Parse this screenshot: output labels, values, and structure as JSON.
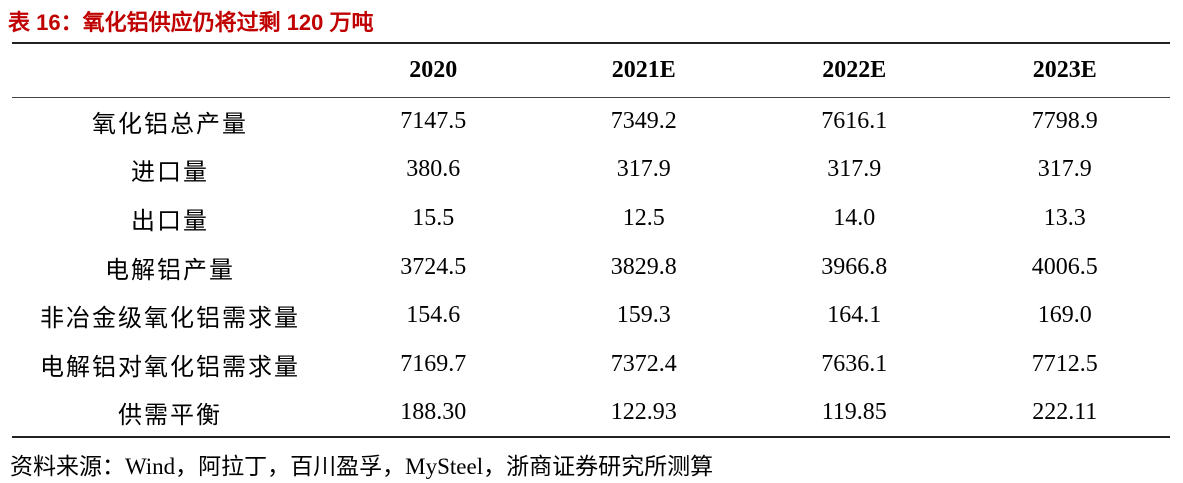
{
  "title": "表 16：氧化铝供应仍将过剩 120 万吨",
  "table": {
    "columns": [
      "2020",
      "2021E",
      "2022E",
      "2023E"
    ],
    "rows": [
      {
        "label": "氧化铝总产量",
        "cells": [
          "7147.5",
          "7349.2",
          "7616.1",
          "7798.9"
        ]
      },
      {
        "label": "进口量",
        "cells": [
          "380.6",
          "317.9",
          "317.9",
          "317.9"
        ]
      },
      {
        "label": "出口量",
        "cells": [
          "15.5",
          "12.5",
          "14.0",
          "13.3"
        ]
      },
      {
        "label": "电解铝产量",
        "cells": [
          "3724.5",
          "3829.8",
          "3966.8",
          "4006.5"
        ]
      },
      {
        "label": "非冶金级氧化铝需求量",
        "cells": [
          "154.6",
          "159.3",
          "164.1",
          "169.0"
        ]
      },
      {
        "label": "电解铝对氧化铝需求量",
        "cells": [
          "7169.7",
          "7372.4",
          "7636.1",
          "7712.5"
        ]
      },
      {
        "label": "供需平衡",
        "cells": [
          "188.30",
          "122.93",
          "119.85",
          "222.11"
        ]
      }
    ]
  },
  "source": "资料来源：Wind，阿拉丁，百川盈孚，MySteel，浙商证券研究所测算"
}
